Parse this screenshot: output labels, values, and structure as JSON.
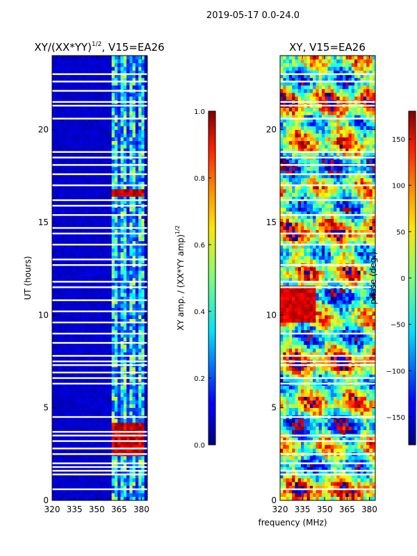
{
  "figure_title": "2019-05-17 0.0-24.0",
  "shared_xlabel": "frequency (MHz)",
  "colormap": "jet",
  "chart_data": [
    {
      "type": "heatmap",
      "title": "XY/(XX*YY)",
      "title_exponent": "1/2",
      "title_suffix": ", V15=EA26",
      "xlabel": "",
      "ylabel": "UT (hours)",
      "xlim": [
        320,
        384
      ],
      "ylim": [
        0,
        24
      ],
      "xticks": [
        320,
        335,
        350,
        365,
        380
      ],
      "yticks": [
        0,
        5,
        10,
        15,
        20
      ],
      "colorbar": {
        "label": "XY amp. / (XX*YY amp)",
        "label_exponent": "1/2",
        "range": [
          0.0,
          1.0
        ],
        "ticks": [
          "0.0",
          "0.2",
          "0.4",
          "0.6",
          "0.8",
          "1.0"
        ],
        "tick_values": [
          0.0,
          0.2,
          0.4,
          0.6,
          0.8,
          1.0
        ]
      },
      "background_value": 0.05,
      "active_band_mhz": [
        361,
        381
      ],
      "high_amplitude_times_ut": [
        16.6,
        2.7,
        3.3,
        3.9
      ],
      "flagged_times_ut": [
        23.0,
        22.6,
        22.1,
        21.5,
        21.3,
        20.6,
        18.8,
        18.5,
        18.1,
        17.6,
        17.0,
        16.2,
        15.9,
        15.4,
        14.7,
        14.4,
        13.8,
        13.0,
        12.7,
        11.8,
        11.5,
        10.8,
        10.2,
        9.6,
        9.0,
        8.5,
        7.8,
        7.5,
        7.3,
        6.9,
        6.6,
        6.3,
        4.5,
        3.7,
        3.5,
        3.2,
        2.8,
        2.5,
        2.0,
        1.8,
        1.6,
        1.4,
        0.6
      ]
    },
    {
      "type": "heatmap",
      "title": "XY, V15=EA26",
      "xlabel": "frequency (MHz)",
      "ylabel": "",
      "xlim": [
        320,
        384
      ],
      "ylim": [
        0,
        24
      ],
      "xticks": [
        320,
        335,
        350,
        365,
        380
      ],
      "yticks": [
        0,
        5,
        10,
        15,
        20
      ],
      "colorbar": {
        "label": "phase (deg.)",
        "range": [
          -180,
          180
        ],
        "ticks": [
          "150",
          "100",
          "50",
          "0",
          "−50",
          "−100",
          "−150"
        ],
        "tick_values": [
          150,
          100,
          50,
          0,
          -50,
          -100,
          -150
        ]
      },
      "flagged_times_ut": [
        23.0,
        22.6,
        21.5,
        21.3,
        20.6,
        18.8,
        18.5,
        18.1,
        17.6,
        17.0,
        16.2,
        15.4,
        14.4,
        13.8,
        12.7,
        11.8,
        11.5,
        9.0,
        7.8,
        7.5,
        7.3,
        6.6,
        6.3,
        4.5,
        3.5,
        3.2,
        2.5,
        2.0,
        1.6,
        1.4,
        0.6
      ]
    }
  ]
}
